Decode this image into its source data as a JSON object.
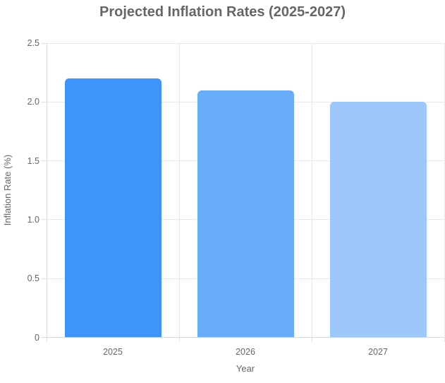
{
  "chart_data": {
    "type": "bar",
    "title": "Projected Inflation Rates (2025-2027)",
    "categories": [
      "2025",
      "2026",
      "2027"
    ],
    "values": [
      2.2,
      2.1,
      2.0
    ],
    "xlabel": "Year",
    "ylabel": "Inflation Rate (%)",
    "ylim": [
      0,
      2.5
    ],
    "ytick_values": [
      0,
      0.5,
      1.0,
      1.5,
      2.0,
      2.5
    ],
    "ytick_labels": [
      "0",
      "0.5",
      "1.0",
      "1.5",
      "2.0",
      "2.5"
    ],
    "bar_colors": [
      "#3d95fc",
      "#68adfa",
      "#9cc8fc"
    ],
    "grid": true,
    "legend": "none"
  }
}
